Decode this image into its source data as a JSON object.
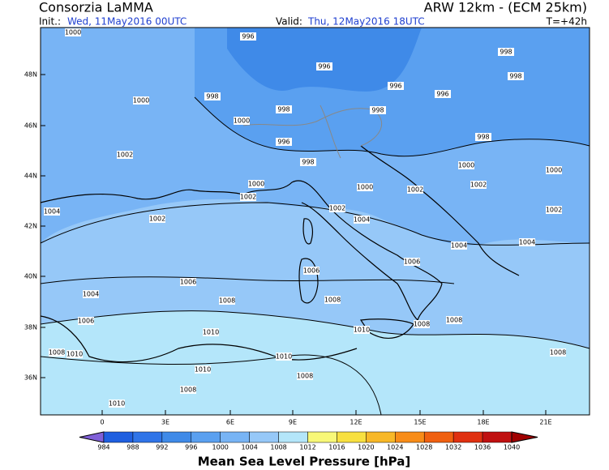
{
  "header": {
    "title": "Consorzia LaMMA",
    "model": "ARW 12km - (ECM 25km)",
    "init_label": "Init.:",
    "init": "Wed, 11May2016 00UTC",
    "valid_label": "Valid:",
    "valid": "Thu, 12May2016 18UTC",
    "step": "T=+42h"
  },
  "axes": {
    "lon_ticks": [
      "0",
      "3E",
      "6E",
      "9E",
      "12E",
      "15E",
      "18E",
      "21E"
    ],
    "lat_ticks": [
      "48N",
      "46N",
      "44N",
      "42N",
      "40N",
      "38N",
      "36N"
    ]
  },
  "contour_labels": [
    1000,
    996,
    996,
    996,
    998,
    998,
    1000,
    998,
    996,
    998,
    998,
    1000,
    996,
    998,
    1002,
    998,
    1000,
    1000,
    1000,
    1000,
    1002,
    1002,
    1002,
    1004,
    1002,
    1002,
    1004,
    1002,
    1004,
    1004,
    1006,
    1006,
    1006,
    1004,
    1008,
    1008,
    1006,
    1008,
    1008,
    1010,
    1010,
    1008,
    1010,
    1010,
    1008,
    1010,
    1008,
    1008,
    1010
  ],
  "colorbar": {
    "title": "Mean Sea Level Pressure [hPa]",
    "levels": [
      984,
      988,
      992,
      996,
      1000,
      1004,
      1008,
      1012,
      1016,
      1020,
      1024,
      1028,
      1032,
      1036,
      1040
    ],
    "colors": [
      "#8060d8",
      "#1f5fe0",
      "#2f74e8",
      "#3f8ae8",
      "#5aa0f0",
      "#78b4f5",
      "#96c8f8",
      "#b4e6fa",
      "#f8f878",
      "#f8e040",
      "#f8b828",
      "#f88c18",
      "#f06010",
      "#e03010",
      "#c01010",
      "#a00000"
    ]
  }
}
